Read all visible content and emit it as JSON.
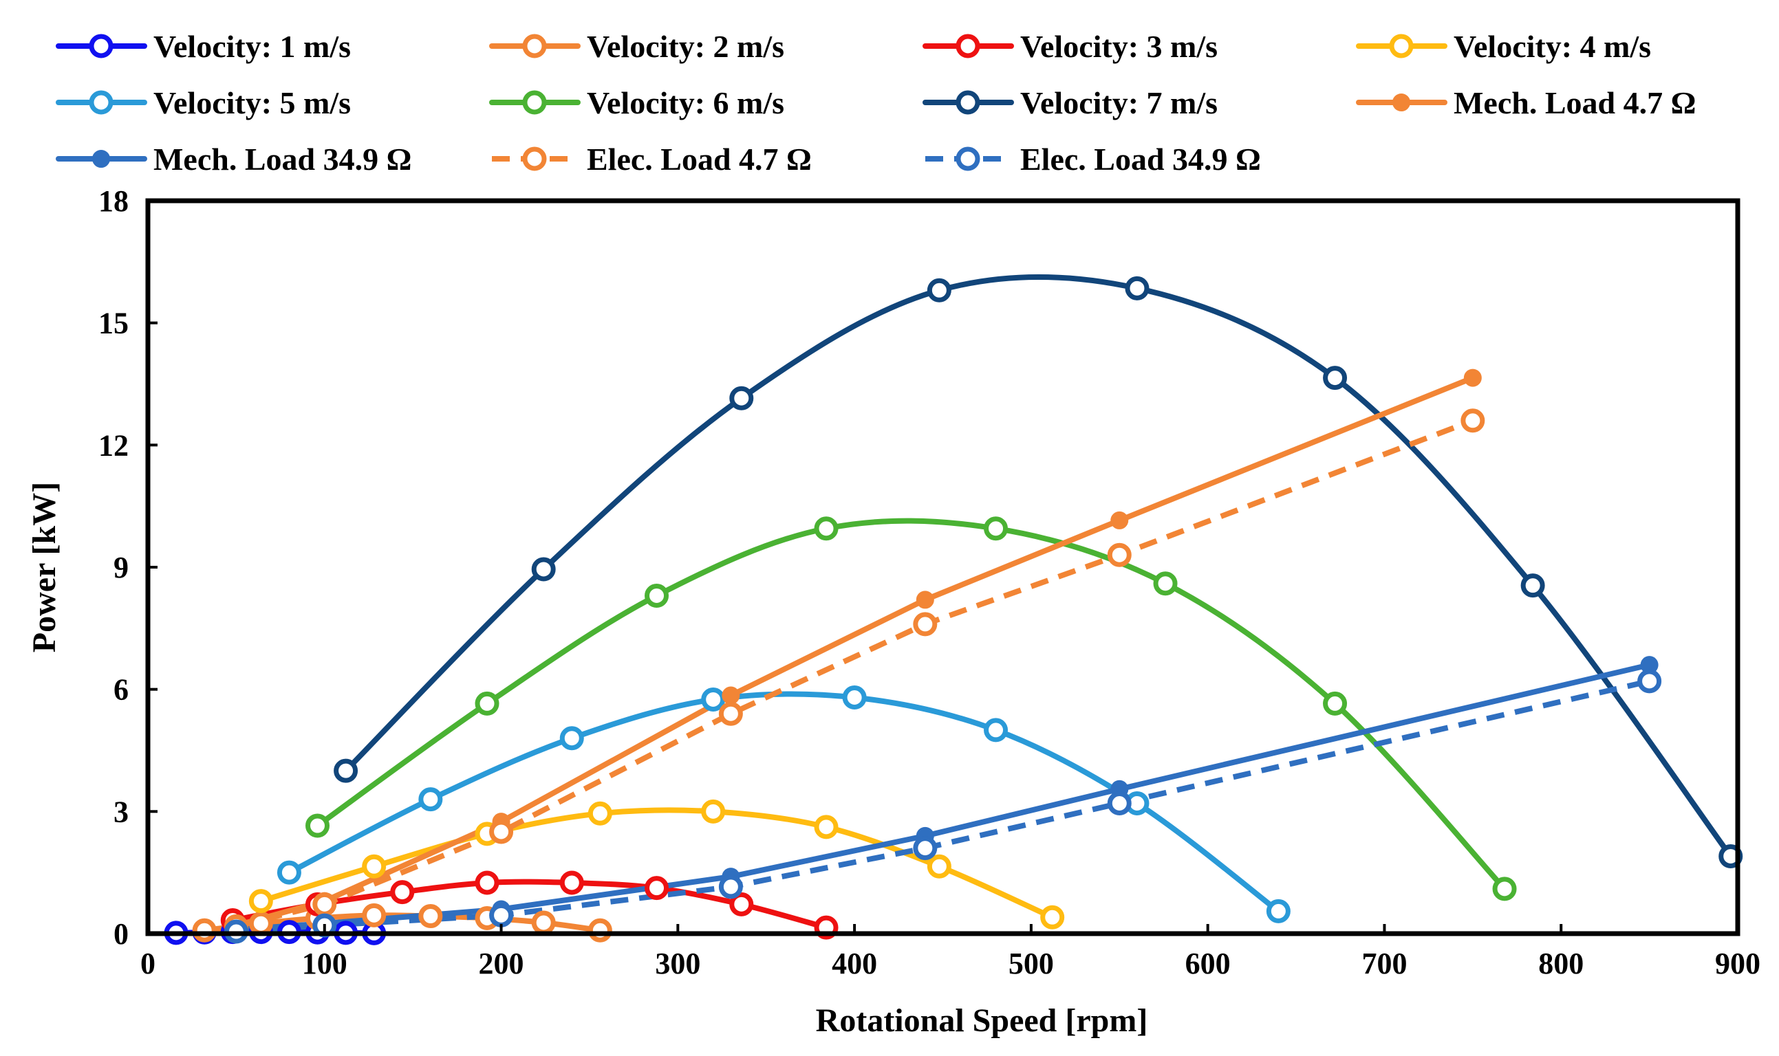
{
  "chart_data": {
    "type": "line",
    "title": "",
    "xlabel": "Rotational Speed [rpm]",
    "ylabel": "Power [kW]",
    "xlim": [
      0,
      900
    ],
    "ylim": [
      0,
      18
    ],
    "xticks": [
      "0",
      "100",
      "200",
      "300",
      "400",
      "500",
      "600",
      "700",
      "800",
      "900"
    ],
    "yticks": [
      "0",
      "3",
      "6",
      "9",
      "12",
      "15",
      "18"
    ],
    "grid": false,
    "legend_position": "top",
    "series": [
      {
        "name": "Velocity: 1 m/s",
        "color": "#1010f0",
        "marker": "open-circle",
        "dashed": false,
        "x": [
          16,
          32,
          48,
          64,
          80,
          96,
          112,
          128
        ],
        "y": [
          0.02,
          0.03,
          0.04,
          0.04,
          0.04,
          0.03,
          0.02,
          0.01
        ]
      },
      {
        "name": "Velocity: 2 m/s",
        "color": "#f28535",
        "marker": "open-circle",
        "dashed": false,
        "x": [
          32,
          64,
          96,
          128,
          160,
          192,
          224,
          256
        ],
        "y": [
          0.08,
          0.25,
          0.38,
          0.45,
          0.43,
          0.38,
          0.27,
          0.08
        ]
      },
      {
        "name": "Velocity: 3 m/s",
        "color": "#ee1111",
        "marker": "open-circle",
        "dashed": false,
        "x": [
          48,
          96,
          144,
          192,
          240,
          288,
          336,
          384
        ],
        "y": [
          0.33,
          0.72,
          1.02,
          1.25,
          1.25,
          1.12,
          0.72,
          0.15
        ]
      },
      {
        "name": "Velocity: 4 m/s",
        "color": "#ffbb11",
        "marker": "open-circle",
        "dashed": false,
        "x": [
          64,
          128,
          192,
          256,
          320,
          384,
          448,
          512
        ],
        "y": [
          0.8,
          1.65,
          2.45,
          2.95,
          3.0,
          2.62,
          1.65,
          0.4
        ]
      },
      {
        "name": "Velocity: 5 m/s",
        "color": "#2a9ad8",
        "marker": "open-circle",
        "dashed": false,
        "x": [
          80,
          160,
          240,
          320,
          400,
          480,
          560,
          640
        ],
        "y": [
          1.5,
          3.3,
          4.8,
          5.75,
          5.8,
          5.0,
          3.2,
          0.55
        ]
      },
      {
        "name": "Velocity: 6 m/s",
        "color": "#4ab233",
        "marker": "open-circle",
        "dashed": false,
        "x": [
          96,
          192,
          288,
          384,
          480,
          576,
          672,
          768
        ],
        "y": [
          2.65,
          5.65,
          8.3,
          9.95,
          9.95,
          8.6,
          5.65,
          1.1
        ]
      },
      {
        "name": "Velocity: 7 m/s",
        "color": "#11457a",
        "marker": "open-circle",
        "dashed": false,
        "x": [
          112,
          224,
          336,
          448,
          560,
          672,
          784,
          896
        ],
        "y": [
          4.0,
          8.95,
          13.15,
          15.8,
          15.85,
          13.65,
          8.55,
          1.9
        ]
      },
      {
        "name": "Mech. Load 4.7 Ω",
        "color": "#f28535",
        "marker": "filled-circle",
        "dashed": false,
        "x": [
          50,
          100,
          200,
          330,
          440,
          550,
          750
        ],
        "y": [
          0.2,
          0.8,
          2.75,
          5.85,
          8.2,
          10.15,
          13.65
        ]
      },
      {
        "name": "Mech. Load 34.9 Ω",
        "color": "#2f6fc0",
        "marker": "filled-circle",
        "dashed": false,
        "x": [
          50,
          100,
          200,
          330,
          440,
          550,
          850
        ],
        "y": [
          0.1,
          0.25,
          0.6,
          1.4,
          2.4,
          3.55,
          6.6
        ]
      },
      {
        "name": "Elec. Load 4.7 Ω",
        "color": "#f28535",
        "marker": "open-circle",
        "dashed": true,
        "x": [
          50,
          100,
          200,
          330,
          440,
          550,
          750
        ],
        "y": [
          0.18,
          0.72,
          2.5,
          5.4,
          7.6,
          9.3,
          12.6
        ]
      },
      {
        "name": "Elec. Load 34.9 Ω",
        "color": "#2f6fc0",
        "marker": "open-circle",
        "dashed": true,
        "x": [
          50,
          100,
          200,
          330,
          440,
          550,
          850
        ],
        "y": [
          0.05,
          0.2,
          0.45,
          1.15,
          2.1,
          3.2,
          6.2
        ]
      }
    ]
  }
}
